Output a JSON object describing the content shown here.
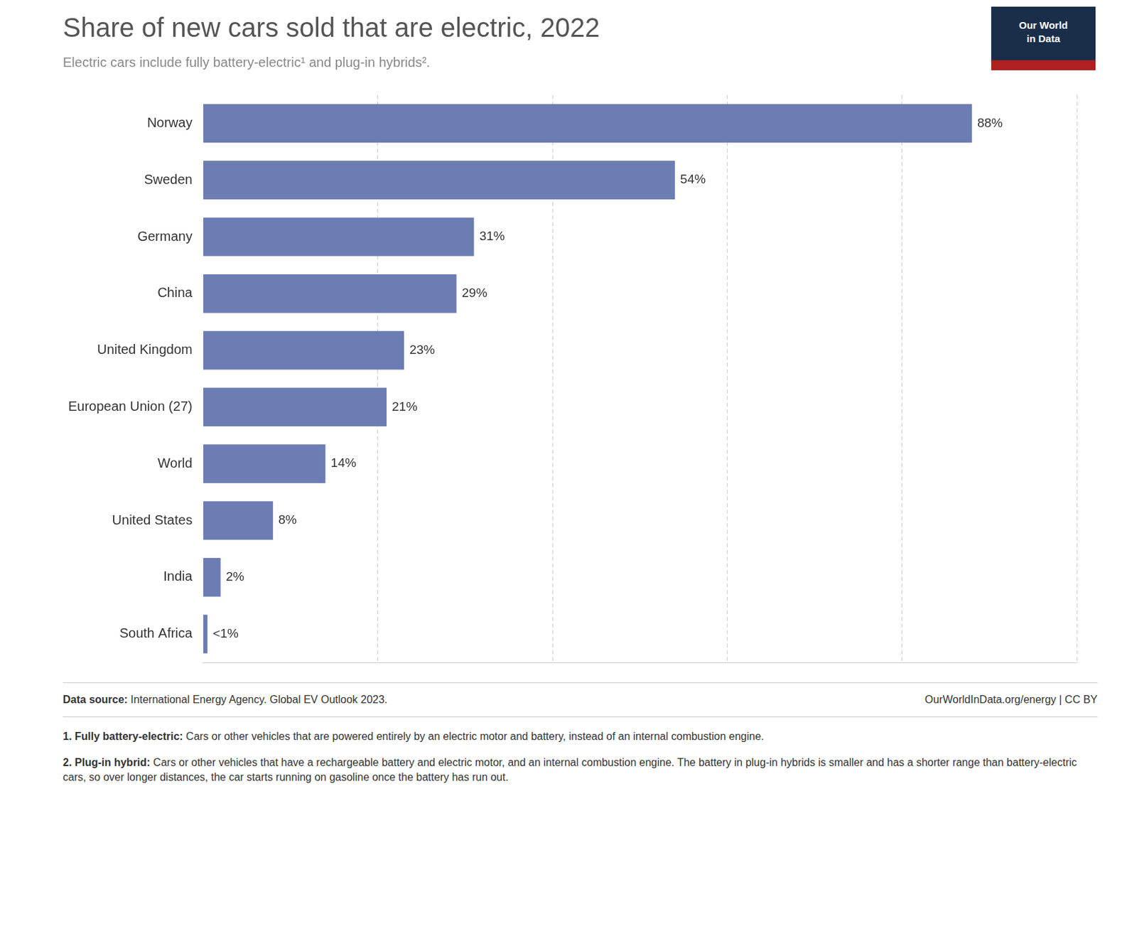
{
  "chart_data": {
    "type": "bar",
    "orientation": "horizontal",
    "title": "Share of new cars sold that are electric, 2022",
    "subtitle": "Electric cars include fully battery-electric¹ and plug-in hybrids².",
    "categories": [
      "South Africa",
      "India",
      "United States",
      "World",
      "European Union (27)",
      "United Kingdom",
      "China",
      "Germany",
      "Sweden",
      "Norway"
    ],
    "values": [
      0.5,
      2,
      8,
      14,
      21,
      23,
      29,
      31,
      54,
      88
    ],
    "value_labels": [
      "<1%",
      "2%",
      "8%",
      "14%",
      "21%",
      "23%",
      "29%",
      "31%",
      "54%",
      "88%"
    ],
    "data_labels": true,
    "color": "#6b7db3",
    "xlim": [
      0,
      100
    ],
    "xticks": [
      20,
      40,
      60,
      80,
      100
    ],
    "grid": true,
    "tick_labels": "y",
    "annotations": [
      "Our World",
      "in Data",
      "Data source:",
      " International Energy Agency. Global EV Outlook 2023.",
      "OurWorldInData.org/energy | CC BY",
      "1. Fully battery-electric:",
      " Cars or other vehicles that are powered entirely by an electric motor and battery, instead of an internal combustion engine.",
      "2. Plug-in hybrid:",
      " Cars or other vehicles that have a rechargeable battery and electric motor, and an internal combustion engine. The battery in plug-in hybrids is smaller and has a shorter range than battery-electric cars, so over longer distances, the car starts running on gasoline once the battery has run out."
    ]
  }
}
